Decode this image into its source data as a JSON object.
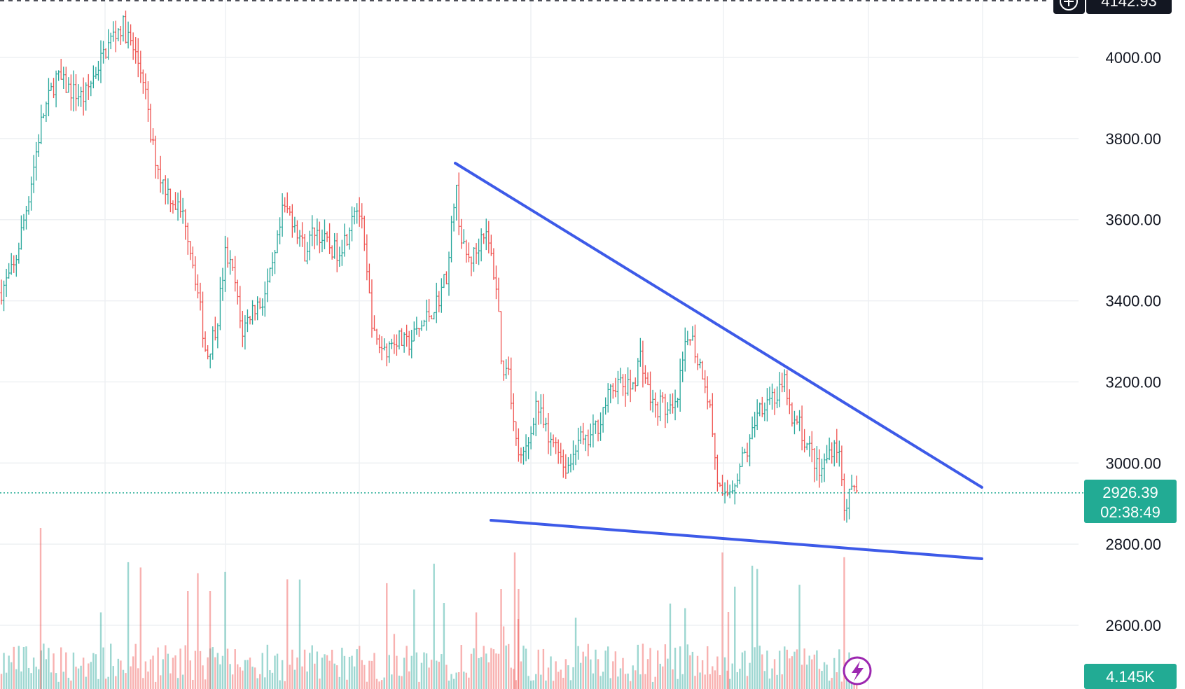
{
  "chart_data": {
    "type": "candlestick",
    "price_axis": {
      "tick_labels": [
        "4000.00",
        "3800.00",
        "3600.00",
        "3400.00",
        "3200.00",
        "3000.00",
        "2800.00",
        "2600.00"
      ],
      "ticks": [
        4000,
        3800,
        3600,
        3400,
        3200,
        3000,
        2800,
        2600
      ]
    },
    "top_price_badge": "4142.93",
    "current_price": {
      "value": 2926.39,
      "label": "2926.39",
      "countdown": "02:38:49"
    },
    "volume_badge": "4.145K",
    "grid": true,
    "trendlines": [
      {
        "name": "",
        "from": {
          "bar": 0.36,
          "price": 3740
        },
        "to": {
          "bar": 0.83,
          "price": 2940
        }
      },
      {
        "name": "",
        "from": {
          "bar": 0.41,
          "price": 2850
        },
        "to": {
          "bar": 0.83,
          "price": 2765
        }
      }
    ],
    "series_overview": {
      "high": 4105,
      "low": 2812,
      "last": 2926.39
    },
    "colors": {
      "up": "#26a69a",
      "down": "#ef5350",
      "trendline": "#3d5ae8",
      "price_badge": "#22ab94",
      "dotted_line": "#22ab94"
    }
  },
  "icons": {
    "crosshair_add": "plus-circle-icon",
    "lightning": "lightning-icon"
  }
}
